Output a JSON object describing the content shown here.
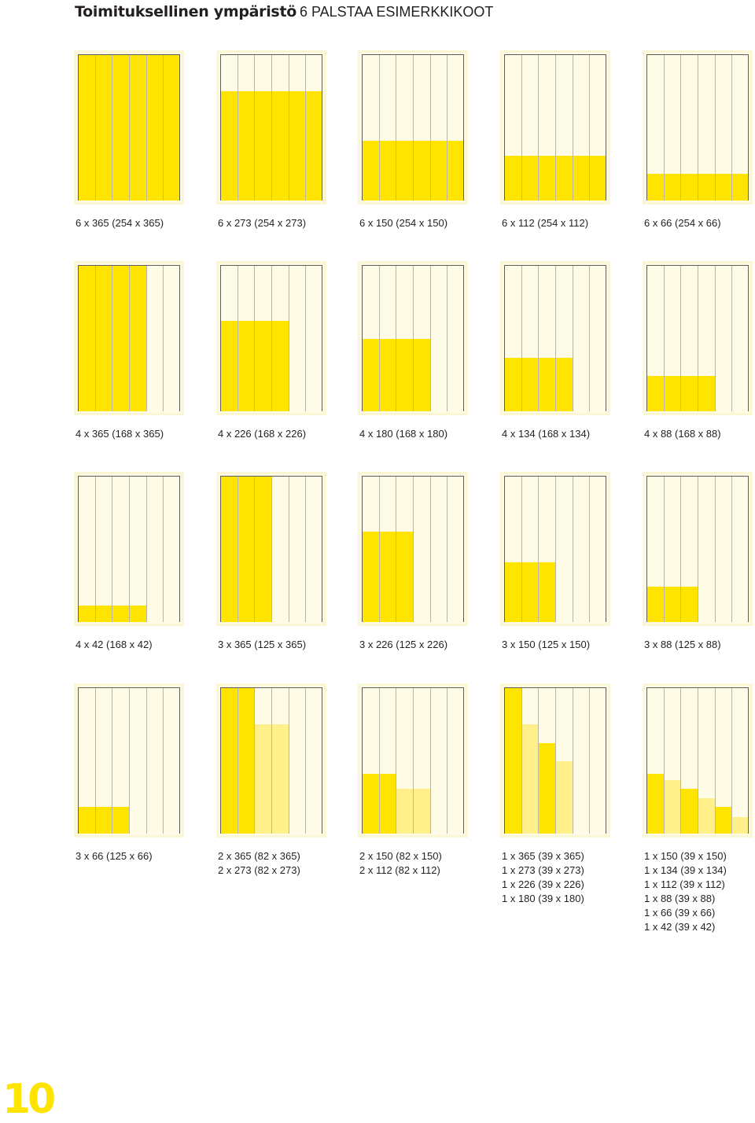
{
  "header": {
    "title_bold": "Toimituksellinen ympäristö",
    "title_sub": "6 PALSTAA ESIMERKKIKOOT"
  },
  "page_number": "10",
  "colors": {
    "yellow": "#ffe400",
    "pale_yellow": "#fff089",
    "page_bg": "#fefbe6",
    "divider": "#b8b5aa"
  },
  "page_spec": {
    "columns": 6,
    "column_height": 365
  },
  "examples": [
    {
      "captions": [
        "6 x 365 (254 x 365)"
      ],
      "blocks": [
        {
          "cols": 6,
          "height": 365,
          "shade": "yellow"
        }
      ]
    },
    {
      "captions": [
        "6 x 273 (254 x 273)"
      ],
      "blocks": [
        {
          "cols": 6,
          "height": 273,
          "shade": "yellow"
        }
      ]
    },
    {
      "captions": [
        "6 x 150 (254 x 150)"
      ],
      "blocks": [
        {
          "cols": 6,
          "height": 150,
          "shade": "yellow"
        }
      ]
    },
    {
      "captions": [
        "6 x 112 (254 x 112)"
      ],
      "blocks": [
        {
          "cols": 6,
          "height": 112,
          "shade": "yellow"
        }
      ]
    },
    {
      "captions": [
        "6 x 66 (254 x 66)"
      ],
      "blocks": [
        {
          "cols": 6,
          "height": 66,
          "shade": "yellow"
        }
      ]
    },
    {
      "captions": [
        "4 x 365 (168 x 365)"
      ],
      "blocks": [
        {
          "cols": 4,
          "height": 365,
          "shade": "yellow"
        }
      ]
    },
    {
      "captions": [
        "4 x 226 (168 x 226)"
      ],
      "blocks": [
        {
          "cols": 4,
          "height": 226,
          "shade": "yellow"
        }
      ]
    },
    {
      "captions": [
        "4 x 180 (168 x 180)"
      ],
      "blocks": [
        {
          "cols": 4,
          "height": 180,
          "shade": "yellow"
        }
      ]
    },
    {
      "captions": [
        "4 x 134 (168 x 134)"
      ],
      "blocks": [
        {
          "cols": 4,
          "height": 134,
          "shade": "yellow"
        }
      ]
    },
    {
      "captions": [
        "4 x 88 (168 x 88)"
      ],
      "blocks": [
        {
          "cols": 4,
          "height": 88,
          "shade": "yellow"
        }
      ]
    },
    {
      "captions": [
        "4 x 42 (168 x 42)"
      ],
      "blocks": [
        {
          "cols": 4,
          "height": 42,
          "shade": "yellow"
        }
      ]
    },
    {
      "captions": [
        "3 x 365 (125 x 365)"
      ],
      "blocks": [
        {
          "cols": 3,
          "height": 365,
          "shade": "yellow"
        }
      ]
    },
    {
      "captions": [
        "3 x 226 (125 x 226)"
      ],
      "blocks": [
        {
          "cols": 3,
          "height": 226,
          "shade": "yellow"
        }
      ]
    },
    {
      "captions": [
        "3 x 150 (125 x 150)"
      ],
      "blocks": [
        {
          "cols": 3,
          "height": 150,
          "shade": "yellow"
        }
      ]
    },
    {
      "captions": [
        "3 x 88 (125 x 88)"
      ],
      "blocks": [
        {
          "cols": 3,
          "height": 88,
          "shade": "yellow"
        }
      ]
    },
    {
      "captions": [
        "3 x 66 (125 x 66)"
      ],
      "blocks": [
        {
          "cols": 3,
          "height": 66,
          "shade": "yellow"
        }
      ]
    },
    {
      "captions": [
        "2 x 365 (82 x 365)",
        "2 x 273 (82 x 273)"
      ],
      "blocks": [
        {
          "cols": 2,
          "height": 365,
          "shade": "yellow"
        },
        {
          "cols": 2,
          "height": 273,
          "shade": "pale_yellow"
        }
      ]
    },
    {
      "captions": [
        "2 x 150 (82 x 150)",
        "2 x 112 (82 x 112)"
      ],
      "blocks": [
        {
          "cols": 2,
          "height": 150,
          "shade": "yellow"
        },
        {
          "cols": 2,
          "height": 112,
          "shade": "pale_yellow"
        }
      ]
    },
    {
      "captions": [
        "1 x 365 (39 x 365)",
        "1 x 273 (39 x 273)",
        "1 x 226 (39 x 226)",
        "1 x 180 (39 x 180)"
      ],
      "blocks": [
        {
          "cols": 1,
          "height": 365,
          "shade": "yellow"
        },
        {
          "cols": 1,
          "height": 273,
          "shade": "pale_yellow"
        },
        {
          "cols": 1,
          "height": 226,
          "shade": "yellow"
        },
        {
          "cols": 1,
          "height": 180,
          "shade": "pale_yellow"
        }
      ]
    },
    {
      "captions": [
        "1 x 150 (39 x 150)",
        "1 x 134 (39 x 134)",
        "1 x 112 (39 x 112)",
        "1 x 88 (39 x 88)",
        "1 x 66 (39 x 66)",
        "1 x 42 (39 x 42)"
      ],
      "blocks": [
        {
          "cols": 1,
          "height": 150,
          "shade": "yellow"
        },
        {
          "cols": 1,
          "height": 134,
          "shade": "pale_yellow"
        },
        {
          "cols": 1,
          "height": 112,
          "shade": "yellow"
        },
        {
          "cols": 1,
          "height": 88,
          "shade": "pale_yellow"
        },
        {
          "cols": 1,
          "height": 66,
          "shade": "yellow"
        },
        {
          "cols": 1,
          "height": 42,
          "shade": "pale_yellow"
        }
      ]
    }
  ]
}
